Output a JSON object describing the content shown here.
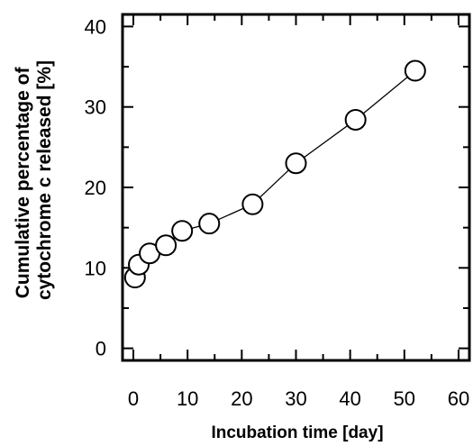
{
  "chart_data": {
    "type": "line",
    "title": "",
    "xlabel": "Incubation time [day]",
    "ylabel_lines": [
      "Cumulative percentage of",
      "cytochrome c released [%]"
    ],
    "xlim": [
      -2,
      62
    ],
    "ylim": [
      -1.5,
      41.5
    ],
    "x_ticks": [
      0,
      10,
      20,
      30,
      40,
      50,
      60
    ],
    "y_ticks": [
      0,
      10,
      20,
      30,
      40
    ],
    "grid": false,
    "marker": "open-circle",
    "series": [
      {
        "x": [
          0.3,
          1,
          3,
          6,
          9,
          14,
          22,
          30,
          41,
          52
        ],
        "y": [
          8.8,
          10.4,
          11.8,
          12.8,
          14.6,
          15.5,
          17.9,
          23.0,
          28.4,
          34.5
        ]
      }
    ]
  }
}
